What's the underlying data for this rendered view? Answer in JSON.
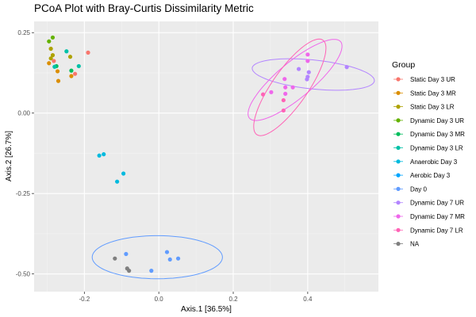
{
  "chart_data": {
    "type": "scatter",
    "title": "PCoA Plot with Bray-Curtis Dissimilarity Metric",
    "xlabel": "Axis.1   [36.5%]",
    "ylabel": "Axis.2   [26.7%]",
    "xlim": [
      -0.335,
      0.59
    ],
    "ylim": [
      -0.555,
      0.285
    ],
    "x_ticks": [
      -0.2,
      0.0,
      0.2,
      0.4
    ],
    "x_tick_labels": [
      "-0.2",
      "0.0",
      "0.2",
      "0.4"
    ],
    "y_ticks": [
      -0.5,
      -0.25,
      0.0,
      0.25
    ],
    "y_tick_labels": [
      "-0.50",
      "-0.25",
      "0.00",
      "0.25"
    ],
    "grid": true,
    "panel_background": "#ebebeb",
    "legend_title": "Group",
    "legend_position": "right",
    "series": [
      {
        "name": "Static Day 3 UR",
        "color": "#F8766D",
        "points": [
          [
            -0.19,
            0.188
          ],
          [
            -0.282,
            0.162
          ],
          [
            -0.225,
            0.122
          ]
        ]
      },
      {
        "name": "Static Day 3 MR",
        "color": "#DB8E00",
        "points": [
          [
            -0.295,
            0.155
          ],
          [
            -0.272,
            0.13
          ],
          [
            -0.235,
            0.115
          ],
          [
            -0.27,
            0.1
          ]
        ]
      },
      {
        "name": "Static Day 3 LR",
        "color": "#AEA200",
        "points": [
          [
            -0.29,
            0.2
          ],
          [
            -0.285,
            0.18
          ],
          [
            -0.29,
            0.17
          ],
          [
            -0.238,
            0.175
          ]
        ]
      },
      {
        "name": "Dynamic Day 3 UR",
        "color": "#64B200",
        "points": [
          [
            -0.285,
            0.235
          ],
          [
            -0.295,
            0.223
          ]
        ]
      },
      {
        "name": "Dynamic Day 3 MR",
        "color": "#00BD5C",
        "points": [
          [
            -0.275,
            0.146
          ],
          [
            -0.235,
            0.132
          ]
        ]
      },
      {
        "name": "Dynamic Day 3 LR",
        "color": "#00C1A7",
        "points": [
          [
            -0.248,
            0.192
          ],
          [
            -0.215,
            0.146
          ],
          [
            -0.28,
            0.144
          ]
        ]
      },
      {
        "name": "Anaerobic Day 3",
        "color": "#00BADE",
        "points": [
          [
            -0.16,
            -0.132
          ],
          [
            -0.148,
            -0.128
          ],
          [
            -0.095,
            -0.188
          ],
          [
            -0.112,
            -0.213
          ]
        ]
      },
      {
        "name": "Aerobic Day 3",
        "color": "#00A6FF",
        "points": []
      },
      {
        "name": "Day 0",
        "color": "#619CFF",
        "points": [
          [
            -0.088,
            -0.438
          ],
          [
            -0.02,
            -0.49
          ],
          [
            0.022,
            -0.432
          ],
          [
            0.03,
            -0.455
          ],
          [
            0.052,
            -0.452
          ]
        ]
      },
      {
        "name": "Dynamic Day 7 UR",
        "color": "#B385FF",
        "points": [
          [
            0.505,
            0.143
          ],
          [
            0.376,
            0.137
          ],
          [
            0.4,
            0.113
          ],
          [
            0.398,
            0.105
          ],
          [
            0.403,
            0.127
          ]
        ]
      },
      {
        "name": "Dynamic Day 7 MR",
        "color": "#EF67EB",
        "points": [
          [
            0.4,
            0.162
          ],
          [
            0.4,
            0.182
          ],
          [
            0.338,
            0.106
          ],
          [
            0.34,
            0.08
          ],
          [
            0.34,
            0.06
          ],
          [
            0.302,
            0.065
          ],
          [
            0.36,
            0.08
          ]
        ]
      },
      {
        "name": "Dynamic Day 7 LR",
        "color": "#FF63B6",
        "points": [
          [
            0.335,
            0.04
          ],
          [
            0.28,
            0.058
          ],
          [
            0.335,
            0.008
          ]
        ]
      },
      {
        "name": "NA",
        "color": "#7F7F7F",
        "points": [
          [
            -0.118,
            -0.452
          ],
          [
            -0.085,
            -0.483
          ],
          [
            -0.08,
            -0.49
          ]
        ]
      }
    ],
    "ellipses": [
      {
        "group": "Day 0",
        "color": "#619CFF",
        "center": [
          -0.004,
          -0.448
        ],
        "rx": 0.175,
        "ry": 0.067,
        "angle_deg": 0
      },
      {
        "group": "Dynamic Day 7 UR",
        "color": "#B385FF",
        "center": [
          0.415,
          0.12
        ],
        "rx": 0.165,
        "ry": 0.045,
        "angle_deg": -6
      },
      {
        "group": "Dynamic Day 7 MR",
        "color": "#EF67EB",
        "center": [
          0.366,
          0.103
        ],
        "rx": 0.16,
        "ry": 0.055,
        "angle_deg": 40
      },
      {
        "group": "Dynamic Day 7 LR",
        "color": "#FF63B6",
        "center": [
          0.352,
          0.08
        ],
        "rx": 0.155,
        "ry": 0.055,
        "angle_deg": 55
      }
    ]
  }
}
